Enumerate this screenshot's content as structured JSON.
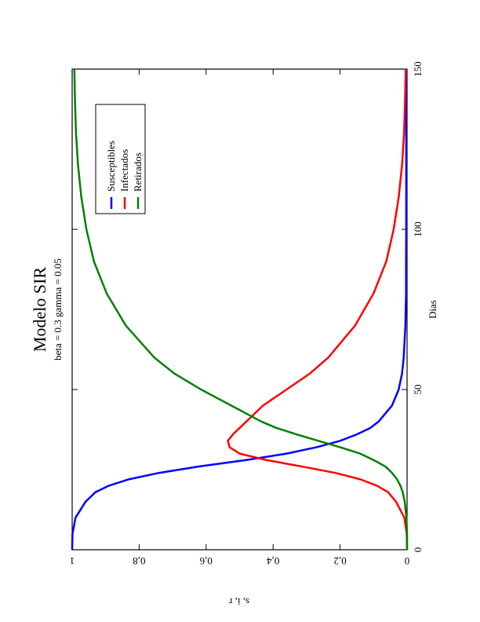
{
  "chart_data": {
    "type": "line",
    "title": "Modelo SIR",
    "subtitle": "beta = 0.3 gamma = 0.05",
    "x_label": "Dias",
    "y_label": "s, i, r",
    "x": [
      0,
      5,
      10,
      15,
      18,
      20,
      22,
      24,
      26,
      28,
      30,
      32,
      34,
      36,
      38,
      40,
      45,
      50,
      55,
      60,
      70,
      80,
      90,
      100,
      110,
      120,
      130,
      140,
      150
    ],
    "series": [
      {
        "name": "Susceptibles",
        "color": "#0000ff",
        "values": [
          1,
          0.999,
          0.99,
          0.96,
          0.93,
          0.89,
          0.83,
          0.74,
          0.62,
          0.48,
          0.36,
          0.27,
          0.2,
          0.15,
          0.11,
          0.085,
          0.045,
          0.025,
          0.015,
          0.01,
          0.005,
          0.003,
          0.003,
          0.0025,
          0.0025,
          0.0025,
          0.0025,
          0.0025,
          0.0025
        ]
      },
      {
        "name": "Infectados",
        "color": "#ff0000",
        "values": [
          0,
          0.001,
          0.008,
          0.033,
          0.057,
          0.09,
          0.14,
          0.215,
          0.315,
          0.42,
          0.5,
          0.53,
          0.535,
          0.52,
          0.5,
          0.48,
          0.43,
          0.36,
          0.29,
          0.235,
          0.155,
          0.1,
          0.062,
          0.04,
          0.025,
          0.015,
          0.009,
          0.006,
          0.004
        ]
      },
      {
        "name": "Retirados",
        "color": "#008000",
        "values": [
          0,
          0,
          0.002,
          0.007,
          0.013,
          0.02,
          0.03,
          0.045,
          0.065,
          0.1,
          0.14,
          0.2,
          0.265,
          0.33,
          0.39,
          0.435,
          0.525,
          0.615,
          0.695,
          0.755,
          0.84,
          0.897,
          0.935,
          0.9575,
          0.9725,
          0.9825,
          0.9885,
          0.9915,
          0.9935
        ]
      }
    ],
    "xlim": [
      0,
      150
    ],
    "xticks": [
      0,
      50,
      100,
      150
    ],
    "ylim": [
      0,
      1
    ],
    "yticks": [
      0,
      {
        "value": 0.2,
        "label": "0,2"
      },
      {
        "value": 0.4,
        "label": "0,4"
      },
      {
        "value": 0.6,
        "label": "0,6"
      },
      {
        "value": 0.8,
        "label": "0,8"
      },
      1
    ],
    "grid": false
  }
}
